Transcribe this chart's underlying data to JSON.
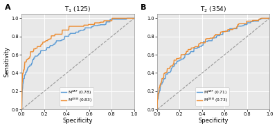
{
  "panel_A": {
    "title": "T$_1$ (125)",
    "label": "A",
    "curves": [
      {
        "label": "M$^{CAT}$ (0.78)",
        "color": "#5B9BD5",
        "auc": 0.78,
        "seed": 1
      },
      {
        "label": "M$^{CNN}$ (0.83)",
        "color": "#ED8B2F",
        "auc": 0.83,
        "seed": 2
      }
    ]
  },
  "panel_B": {
    "title": "T$_2$ (354)",
    "label": "B",
    "curves": [
      {
        "label": "M$^{CAT}$ (0.71)",
        "color": "#5B9BD5",
        "auc": 0.71,
        "seed": 3
      },
      {
        "label": "M$^{CNN}$ (0.73)",
        "color": "#ED8B2F",
        "auc": 0.73,
        "seed": 4
      }
    ]
  },
  "bg_color": "#e8e8e8",
  "grid_color": "#ffffff",
  "diag_color": "#999999",
  "xlabel": "Specificity",
  "ylabel": "Sensitivity",
  "xtick_labels": [
    "1.0",
    "0.8",
    "0.6",
    "0.4",
    "0.2",
    "0.0"
  ],
  "ytick_labels": [
    "0.0",
    "0.2",
    "0.4",
    "0.6",
    "0.8",
    "1.0"
  ]
}
